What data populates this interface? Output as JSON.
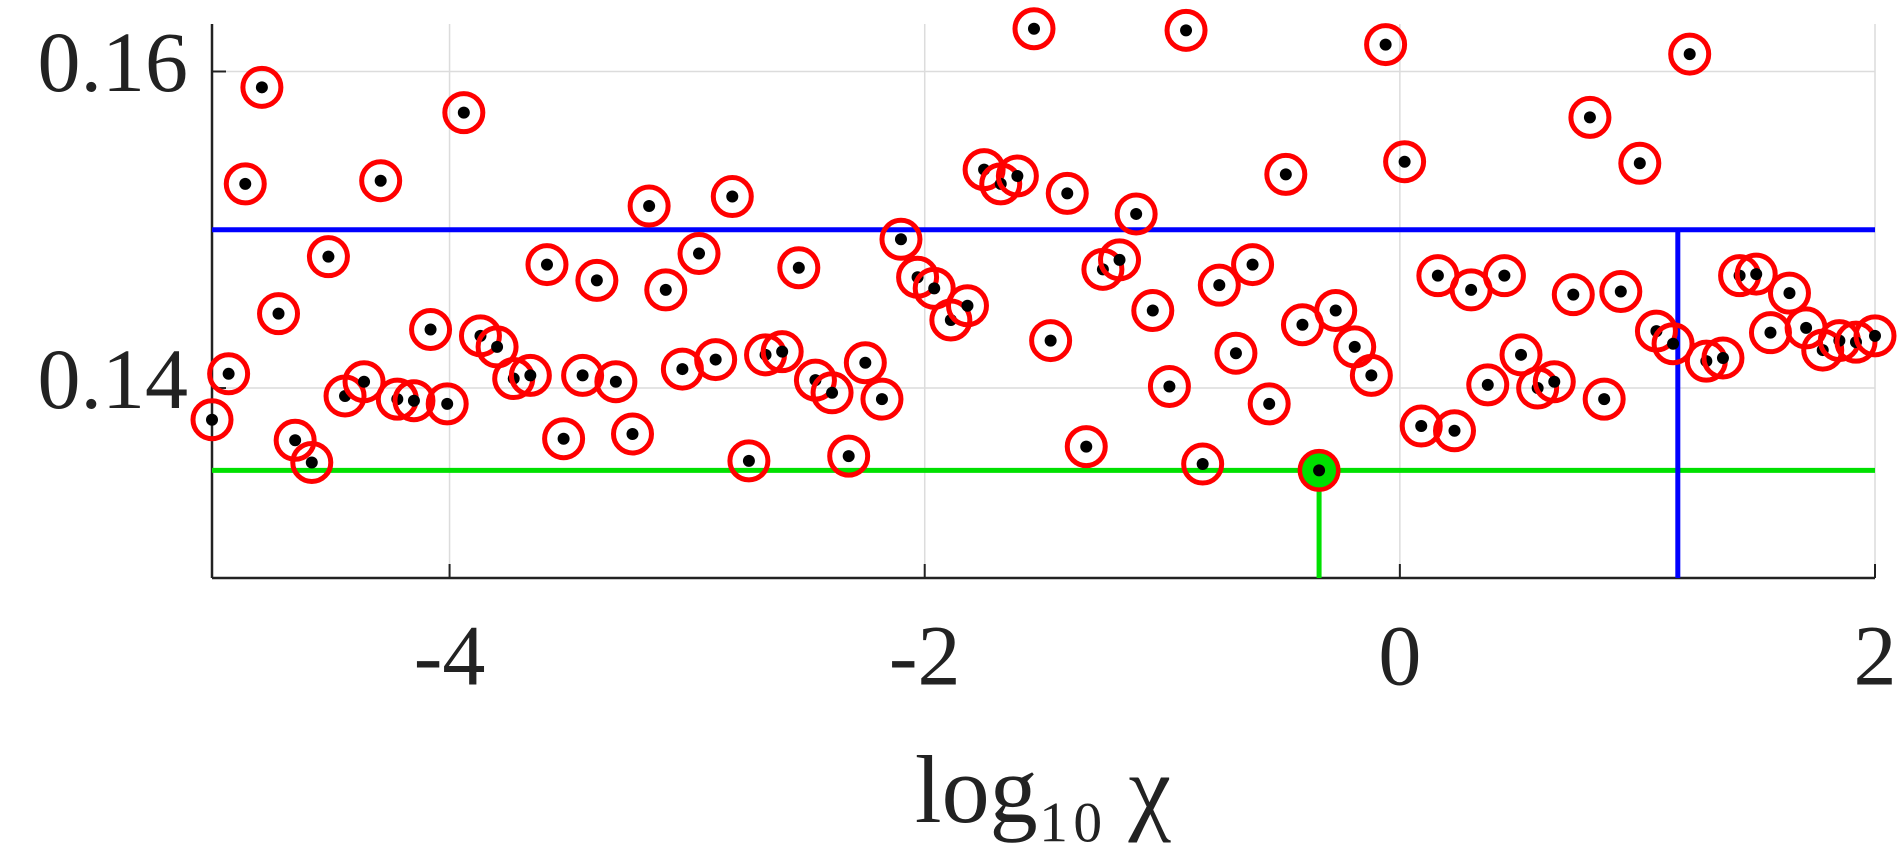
{
  "chart_data": {
    "type": "scatter",
    "xlabel": "log₁₀ χ",
    "xlim": [
      -5,
      2
    ],
    "ylim": [
      0.128,
      0.163
    ],
    "xticks": [
      -4,
      -2,
      0,
      2
    ],
    "yticks": [
      0.14,
      0.16
    ],
    "grid": true,
    "series": [
      {
        "color": "#ff0000",
        "x": [
          -5.0,
          -4.93,
          -4.79,
          -4.86,
          -4.72,
          -4.65,
          -4.58,
          -4.51,
          -4.44,
          -4.36,
          -4.29,
          -4.22,
          -4.15,
          -4.08,
          -4.01,
          -3.94,
          -3.87,
          -3.8,
          -3.73,
          -3.66,
          -3.59,
          -3.52,
          -3.44,
          -3.38,
          -3.3,
          -3.23,
          -3.16,
          -3.09,
          -3.02,
          -2.95,
          -2.88,
          -2.81,
          -2.74,
          -2.67,
          -2.6,
          -2.53,
          -2.46,
          -2.39,
          -2.32,
          -2.25,
          -2.18,
          -2.1,
          -2.03,
          -1.96,
          -1.89,
          -1.82,
          -1.75,
          -1.68,
          -1.61,
          -1.54,
          -1.47,
          -1.4,
          -1.32,
          -1.25,
          -1.18,
          -1.11,
          -1.04,
          -0.97,
          -0.9,
          -0.83,
          -0.76,
          -0.69,
          -0.62,
          -0.55,
          -0.48,
          -0.41,
          -0.34,
          -0.27,
          -0.19,
          -0.12,
          -0.06,
          0.02,
          0.09,
          0.16,
          0.23,
          0.3,
          0.37,
          0.44,
          0.51,
          0.58,
          0.65,
          0.73,
          0.8,
          0.86,
          0.93,
          1.01,
          1.08,
          1.15,
          1.22,
          1.29,
          1.36,
          1.43,
          1.5,
          1.56,
          1.64,
          1.71,
          1.78,
          1.85,
          1.92,
          2.0
        ],
        "values": [
          0.138,
          0.1409,
          0.159,
          0.1529,
          0.1447,
          0.1367,
          0.1353,
          0.1483,
          0.1395,
          0.1404,
          0.1531,
          0.1393,
          0.1392,
          0.1437,
          0.139,
          0.1574,
          0.1433,
          0.1426,
          0.1406,
          0.1408,
          0.1478,
          0.1368,
          0.1408,
          0.1468,
          0.1404,
          0.1371,
          0.1515,
          0.1462,
          0.1412,
          0.1485,
          0.1418,
          0.1521,
          0.1354,
          0.1421,
          0.1423,
          0.1476,
          0.1405,
          0.1397,
          0.1357,
          0.1416,
          0.1393,
          0.1494,
          0.147,
          0.1463,
          0.1443,
          0.1452,
          0.1538,
          0.1529,
          0.1534,
          0.1627,
          0.143,
          0.1523,
          0.1363,
          0.1475,
          0.1481,
          0.151,
          0.1449,
          0.1401,
          0.1626,
          0.1352,
          0.1465,
          0.1422,
          0.1478,
          0.139,
          0.1535,
          0.144,
          0.1348,
          0.1449,
          0.1426,
          0.1408,
          0.1617,
          0.1543,
          0.1376,
          0.1471,
          0.1373,
          0.1462,
          0.1402,
          0.1471,
          0.1421,
          0.14,
          0.1404,
          0.1459,
          0.1571,
          0.1393,
          0.1461,
          0.1542,
          0.1436,
          0.1428,
          0.1611,
          0.1417,
          0.1419,
          0.1471,
          0.1472,
          0.1435,
          0.146,
          0.1438,
          0.1424,
          0.143,
          0.1429,
          0.1433
        ]
      }
    ],
    "hlines": [
      {
        "value": 0.15,
        "color": "#0000ff"
      },
      {
        "value": 0.1348,
        "color": "#00e000"
      }
    ],
    "vlines": [
      {
        "value": 1.17,
        "color": "#0000ff",
        "to": 0.15
      },
      {
        "value": -0.34,
        "color": "#00e000",
        "to": 0.1348
      }
    ],
    "highlight": {
      "x": -0.34,
      "y": 0.1348,
      "color": "#00e000"
    }
  }
}
